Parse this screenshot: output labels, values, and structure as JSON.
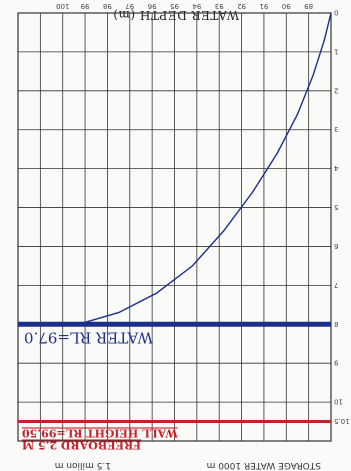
{
  "chart_data": {
    "type": "line",
    "title": "",
    "ylabel": "WATER DEPTH (m)",
    "ylim": [
      0,
      11
    ],
    "y_ticks": [
      {
        "v": 0,
        "label": "0"
      },
      {
        "v": 1,
        "label": "1"
      },
      {
        "v": 2,
        "label": "2"
      },
      {
        "v": 3,
        "label": "3"
      },
      {
        "v": 4,
        "label": "4"
      },
      {
        "v": 5,
        "label": "5"
      },
      {
        "v": 6,
        "label": "6"
      },
      {
        "v": 7,
        "label": "7"
      },
      {
        "v": 8,
        "label": "8"
      },
      {
        "v": 9,
        "label": "9"
      },
      {
        "v": 10,
        "label": "10"
      },
      {
        "v": 10.5,
        "label": "10.5"
      }
    ],
    "x_tick_labels": [
      "89",
      "90",
      "91",
      "92",
      "93",
      "94",
      "95",
      "96",
      "97",
      "98",
      "99",
      "100"
    ],
    "x_scale_ticks": 14,
    "series": [
      {
        "color": "#1c2f8c",
        "points": [
          [
            0,
            0
          ],
          [
            0.3,
            0.7
          ],
          [
            0.8,
            1.6
          ],
          [
            1.5,
            2.6
          ],
          [
            2.4,
            3.6
          ],
          [
            3.5,
            4.6
          ],
          [
            4.8,
            5.6
          ],
          [
            6.2,
            6.5
          ],
          [
            7.8,
            7.2
          ],
          [
            9.5,
            7.7
          ],
          [
            11,
            7.95
          ],
          [
            12,
            8.0
          ]
        ]
      }
    ],
    "reference_lines": [
      {
        "y": 10.5,
        "color": "#c8202a",
        "lines": [
          "WALL HEIGHT RL=99.50",
          "FREEBOARD 2.5 M"
        ]
      },
      {
        "y": 8.0,
        "color": "#1c2f8c",
        "lines": [
          "WATER RL=97.0"
        ]
      }
    ],
    "bottom_text_left": "STORAGE WATER 1000 m",
    "bottom_text_right": "1.5 milion m"
  }
}
